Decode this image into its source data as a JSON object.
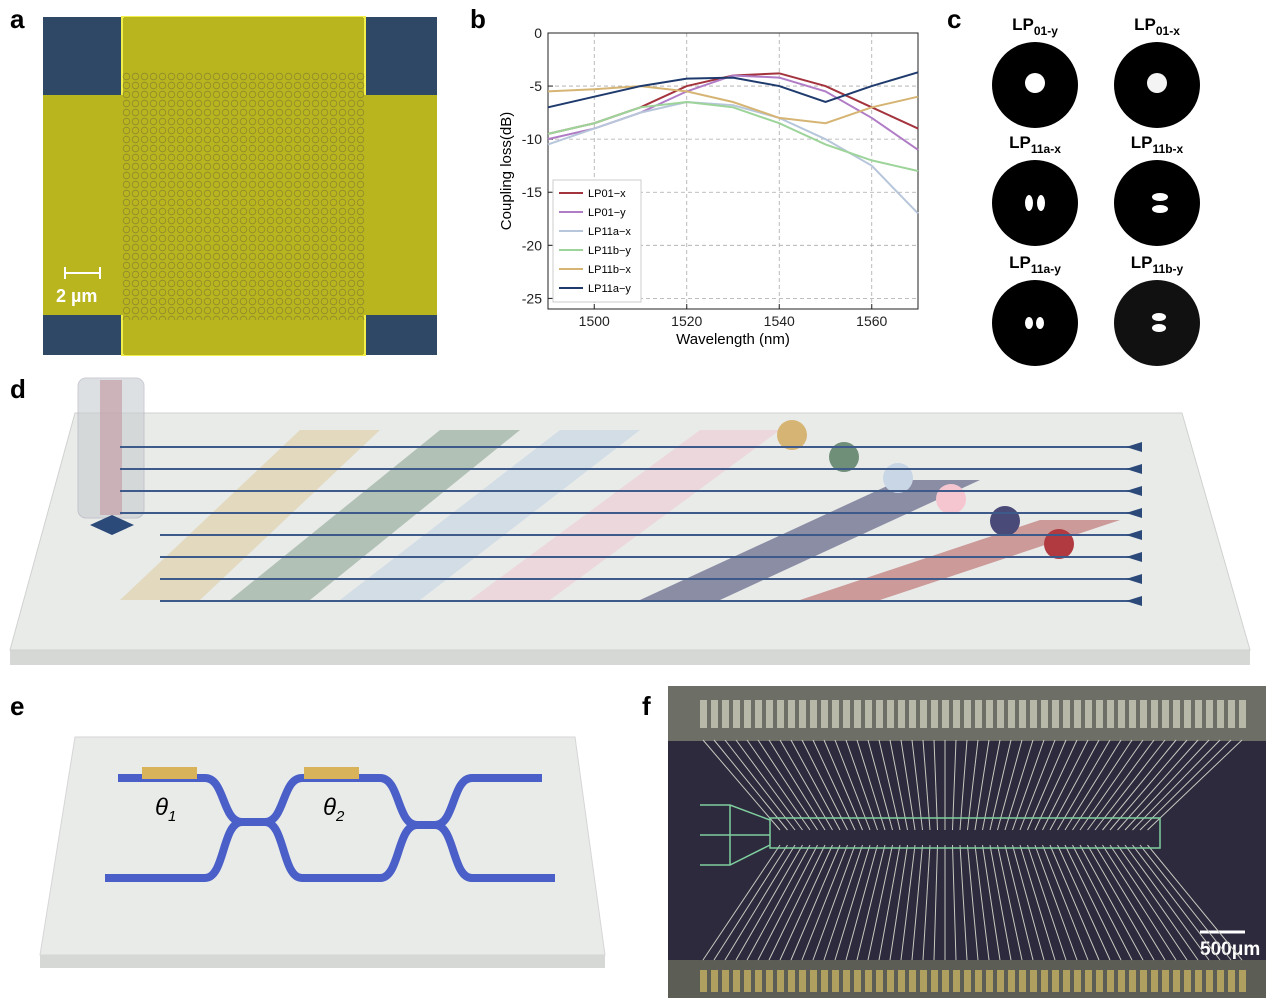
{
  "panel_labels": [
    "a",
    "b",
    "c",
    "d",
    "e",
    "f"
  ],
  "panel_a": {
    "scale_bar": "2 µm"
  },
  "chart_data": {
    "type": "line",
    "xlabel": "Wavelength (nm)",
    "ylabel": "Coupling loss(dB)",
    "x": [
      1490,
      1500,
      1510,
      1520,
      1530,
      1540,
      1550,
      1560,
      1570
    ],
    "xlim": [
      1490,
      1570
    ],
    "xticks": [
      1500,
      1520,
      1540,
      1560
    ],
    "ylim": [
      -26,
      0
    ],
    "yticks": [
      -25,
      -20,
      -15,
      -10,
      -5,
      0
    ],
    "grid": true,
    "legend": "lower left",
    "series": [
      {
        "name": "LP01−x",
        "color": "#a3333d",
        "values": [
          -9.5,
          -8.5,
          -7,
          -5,
          -4,
          -3.8,
          -5,
          -7,
          -9
        ]
      },
      {
        "name": "LP01−y",
        "color": "#b07cc6",
        "values": [
          -10,
          -9,
          -7.5,
          -5.5,
          -4,
          -4.2,
          -5.5,
          -8,
          -11
        ]
      },
      {
        "name": "LP11a−x",
        "color": "#b7c6da",
        "values": [
          -10.5,
          -9,
          -7.5,
          -6.5,
          -6.8,
          -8,
          -10,
          -12.5,
          -17
        ]
      },
      {
        "name": "LP11b−y",
        "color": "#9dd49a",
        "values": [
          -9.5,
          -8.5,
          -7,
          -6.5,
          -7,
          -8.5,
          -10.5,
          -12,
          -13
        ]
      },
      {
        "name": "LP11b−x",
        "color": "#d6b574",
        "values": [
          -5.5,
          -5.3,
          -5,
          -5.5,
          -6.5,
          -8,
          -8.5,
          -7,
          -6
        ]
      },
      {
        "name": "LP11a−y",
        "color": "#1f3b6e",
        "values": [
          -7,
          -6,
          -5,
          -4.3,
          -4.2,
          -5,
          -6.5,
          -5,
          -3.7
        ]
      }
    ]
  },
  "panel_c": {
    "modes": [
      {
        "main": "LP",
        "sub": "01-y"
      },
      {
        "main": "LP",
        "sub": "01-x"
      },
      {
        "main": "LP",
        "sub": "11a-x"
      },
      {
        "main": "LP",
        "sub": "11b-x"
      },
      {
        "main": "LP",
        "sub": "11a-y"
      },
      {
        "main": "LP",
        "sub": "11b-y"
      }
    ]
  },
  "panel_e": {
    "phases": [
      {
        "main": "θ",
        "sub": "1"
      },
      {
        "main": "θ",
        "sub": "2"
      }
    ]
  },
  "panel_f": {
    "scale_bar": "500μm"
  }
}
